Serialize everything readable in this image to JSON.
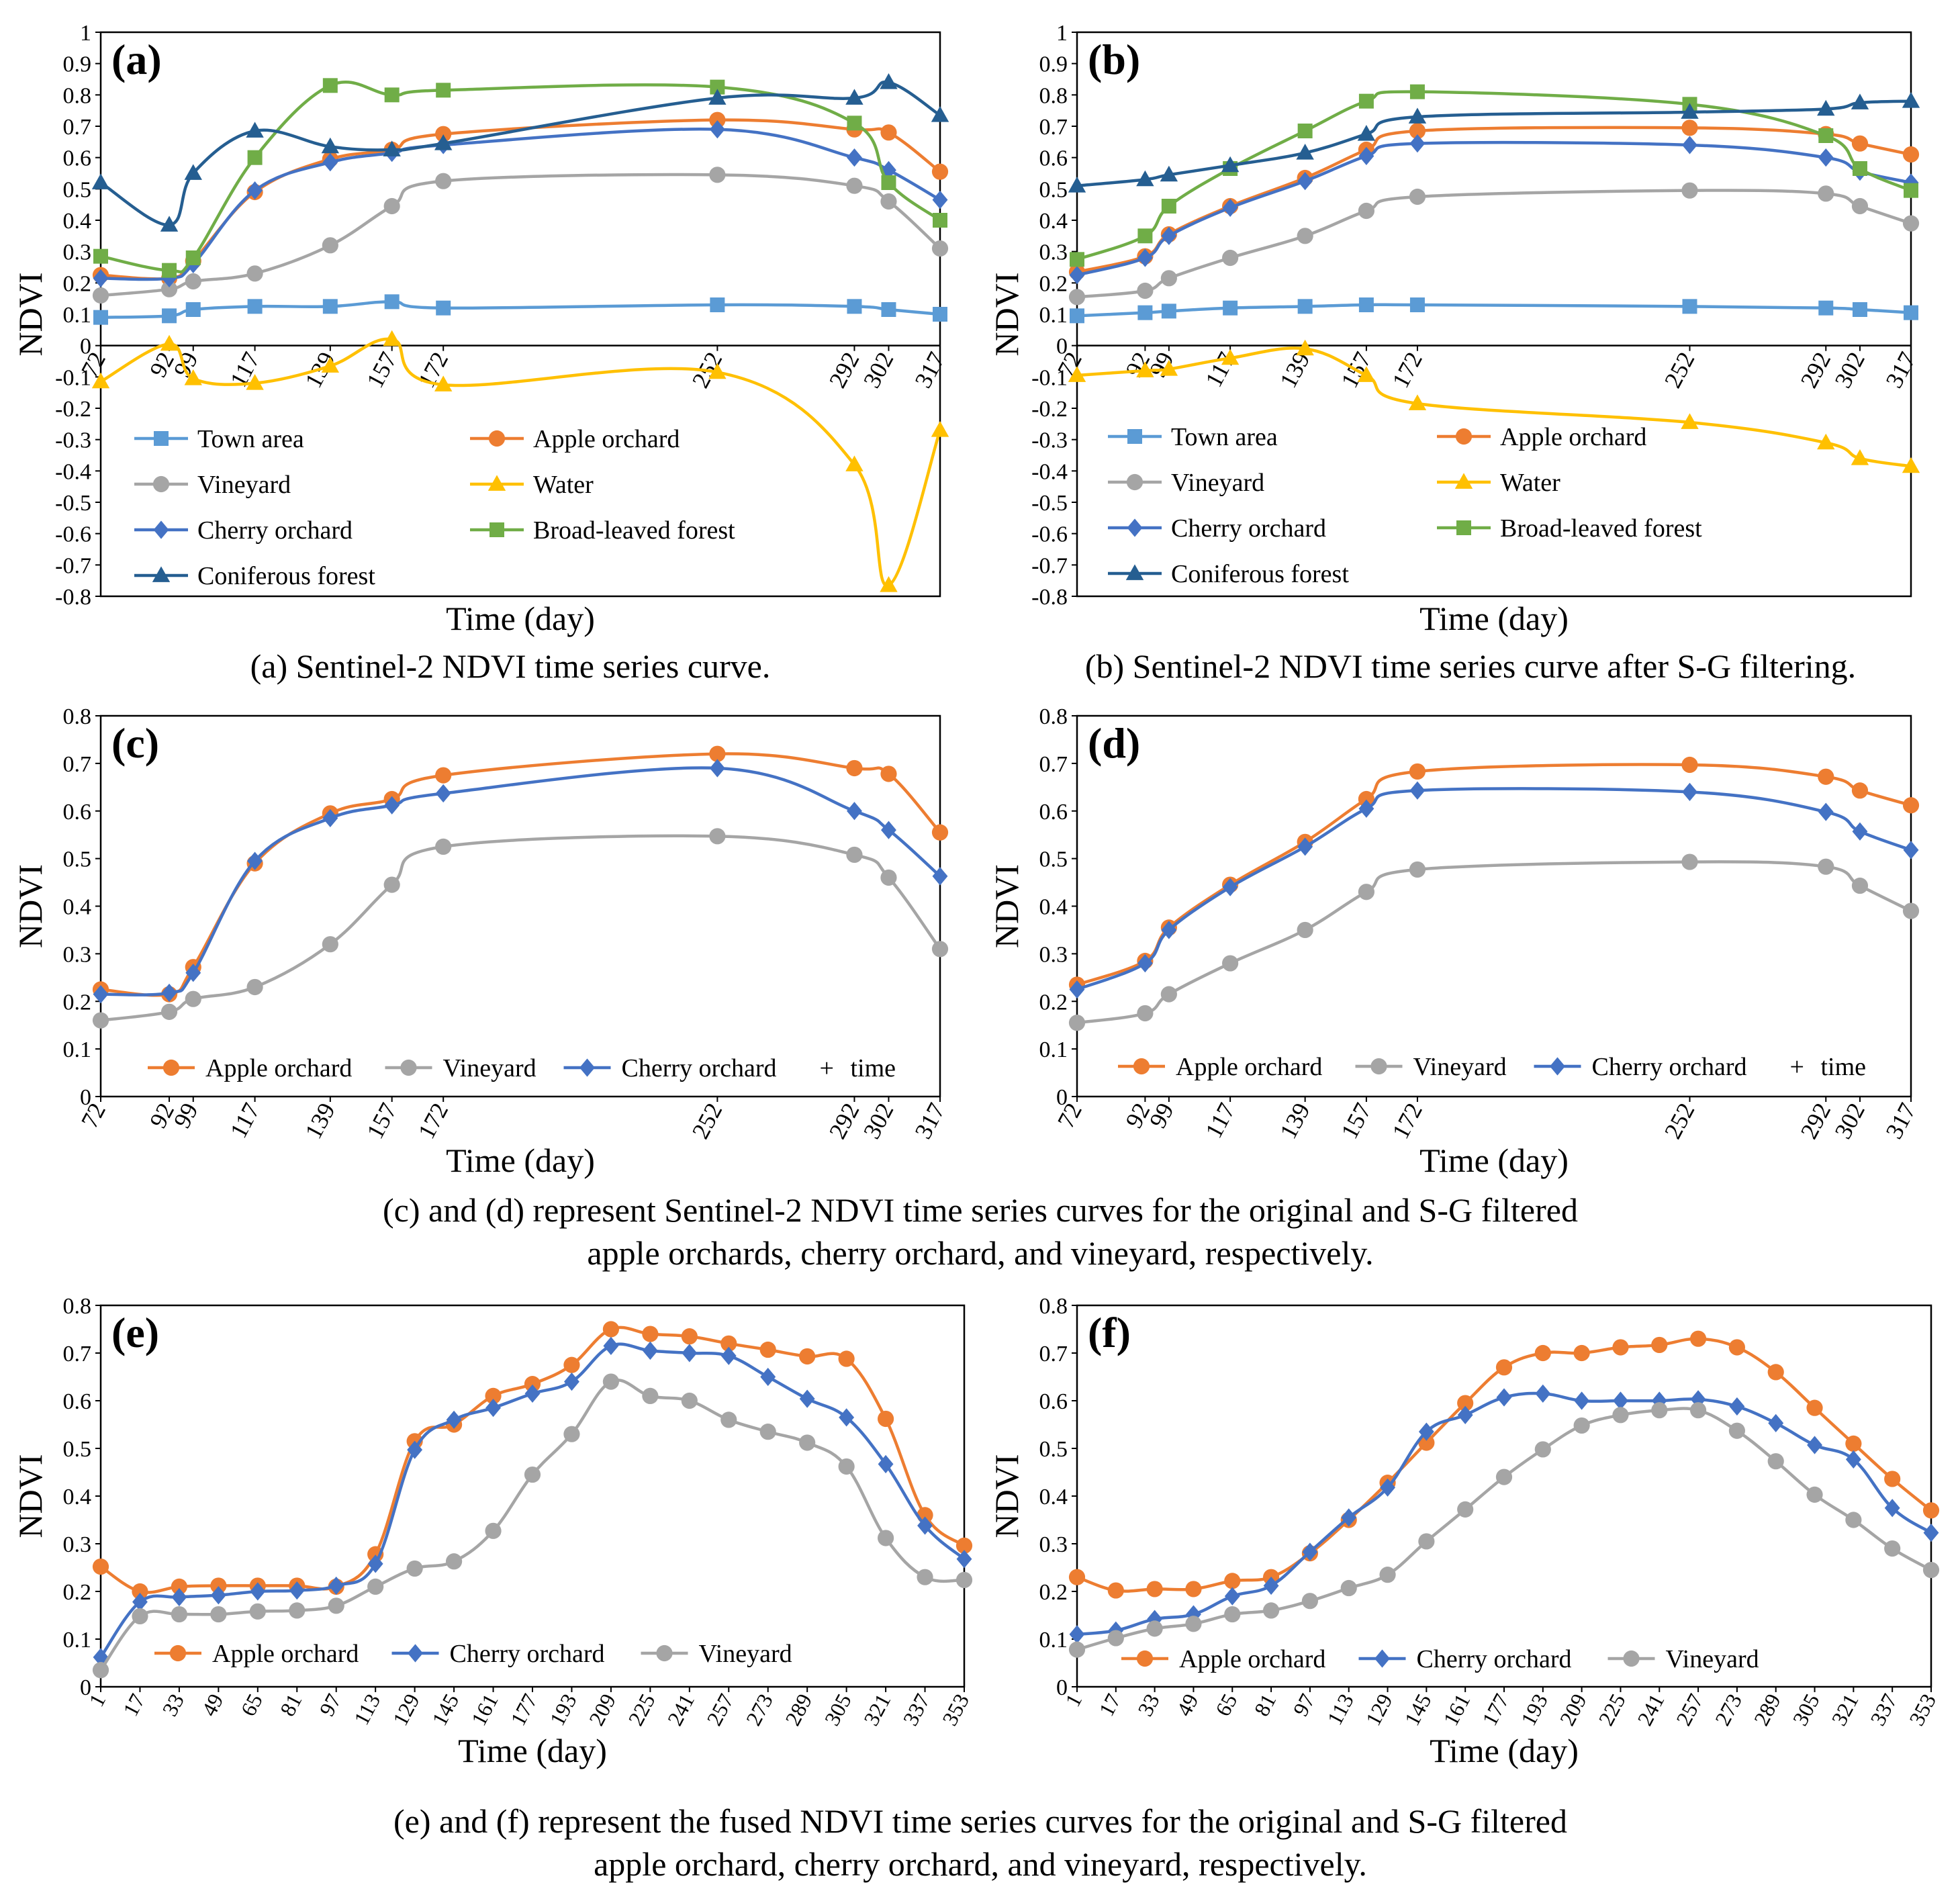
{
  "colors": {
    "town": "#5B9BD5",
    "apple": "#ED7D31",
    "vineyard": "#A5A5A5",
    "water": "#FFC000",
    "cherry": "#4472C4",
    "broadleaf": "#70AD47",
    "conifer": "#255E91",
    "axis": "#000000"
  },
  "chart_data": [
    {
      "id": "a",
      "type": "line",
      "panel_label": "(a)",
      "xlabel": "Time (day)",
      "ylabel": "NDVI",
      "ylim": [
        -0.8,
        1
      ],
      "yticks": [
        "-0.8",
        "-0.7",
        "-0.6",
        "-0.5",
        "-0.4",
        "-0.3",
        "-0.2",
        "-0.1",
        "0",
        "0.1",
        "0.2",
        "0.3",
        "0.4",
        "0.5",
        "0.6",
        "0.7",
        "0.8",
        "0.9",
        "1"
      ],
      "x": [
        72,
        92,
        99,
        117,
        139,
        157,
        172,
        252,
        292,
        302,
        317
      ],
      "xtick_labels": [
        "72",
        "92",
        "99",
        "117",
        "139",
        "157",
        "172",
        "252",
        "292",
        "302",
        "317"
      ],
      "legend_note": "",
      "series": [
        {
          "name": "Town area",
          "key": "town",
          "marker": "square",
          "values": [
            0.09,
            0.095,
            0.115,
            0.125,
            0.125,
            0.14,
            0.12,
            0.13,
            0.125,
            0.115,
            0.1
          ]
        },
        {
          "name": "Apple orchard",
          "key": "apple",
          "marker": "circle",
          "values": [
            0.225,
            0.215,
            0.27,
            0.49,
            0.595,
            0.625,
            0.675,
            0.72,
            0.69,
            0.68,
            0.555
          ]
        },
        {
          "name": "Vineyard",
          "key": "vineyard",
          "marker": "circle",
          "values": [
            0.16,
            0.18,
            0.205,
            0.23,
            0.32,
            0.445,
            0.525,
            0.545,
            0.51,
            0.46,
            0.31
          ]
        },
        {
          "name": "Water",
          "key": "water",
          "marker": "triangle",
          "values": [
            -0.115,
            0.005,
            -0.105,
            -0.12,
            -0.065,
            0.02,
            -0.125,
            -0.085,
            -0.38,
            -0.765,
            -0.27
          ]
        },
        {
          "name": "Cherry orchard",
          "key": "cherry",
          "marker": "diamond",
          "values": [
            0.215,
            0.215,
            0.26,
            0.495,
            0.585,
            0.615,
            0.64,
            0.69,
            0.6,
            0.56,
            0.465
          ]
        },
        {
          "name": "Broad-leaved forest",
          "key": "broadleaf",
          "marker": "square",
          "values": [
            0.285,
            0.24,
            0.28,
            0.6,
            0.83,
            0.8,
            0.815,
            0.825,
            0.71,
            0.52,
            0.4
          ]
        },
        {
          "name": "Coniferous forest",
          "key": "conifer",
          "marker": "triangle",
          "values": [
            0.52,
            0.385,
            0.55,
            0.685,
            0.635,
            0.625,
            0.645,
            0.79,
            0.79,
            0.84,
            0.735
          ]
        }
      ]
    },
    {
      "id": "b",
      "type": "line",
      "panel_label": "(b)",
      "xlabel": "Time (day)",
      "ylabel": "NDVI",
      "ylim": [
        -0.8,
        1
      ],
      "yticks": [
        "-0.8",
        "-0.7",
        "-0.6",
        "-0.5",
        "-0.4",
        "-0.3",
        "-0.2",
        "-0.1",
        "0",
        "0.1",
        "0.2",
        "0.3",
        "0.4",
        "0.5",
        "0.6",
        "0.7",
        "0.8",
        "0.9",
        "1"
      ],
      "x": [
        72,
        92,
        99,
        117,
        139,
        157,
        172,
        252,
        292,
        302,
        317
      ],
      "xtick_labels": [
        "72",
        "92",
        "99",
        "117",
        "139",
        "157",
        "172",
        "252",
        "292",
        "302",
        "317"
      ],
      "legend_note": "",
      "series": [
        {
          "name": "Town area",
          "key": "town",
          "marker": "square",
          "values": [
            0.095,
            0.105,
            0.11,
            0.12,
            0.125,
            0.13,
            0.13,
            0.125,
            0.12,
            0.115,
            0.105
          ]
        },
        {
          "name": "Apple orchard",
          "key": "apple",
          "marker": "circle",
          "values": [
            0.235,
            0.285,
            0.355,
            0.445,
            0.535,
            0.625,
            0.685,
            0.695,
            0.675,
            0.645,
            0.61
          ]
        },
        {
          "name": "Vineyard",
          "key": "vineyard",
          "marker": "circle",
          "values": [
            0.155,
            0.175,
            0.215,
            0.28,
            0.35,
            0.43,
            0.475,
            0.495,
            0.485,
            0.445,
            0.39
          ]
        },
        {
          "name": "Water",
          "key": "water",
          "marker": "triangle",
          "values": [
            -0.095,
            -0.08,
            -0.075,
            -0.04,
            -0.01,
            -0.095,
            -0.185,
            -0.245,
            -0.31,
            -0.36,
            -0.385
          ]
        },
        {
          "name": "Cherry orchard",
          "key": "cherry",
          "marker": "diamond",
          "values": [
            0.225,
            0.28,
            0.35,
            0.44,
            0.525,
            0.605,
            0.645,
            0.64,
            0.6,
            0.555,
            0.52
          ]
        },
        {
          "name": "Broad-leaved forest",
          "key": "broadleaf",
          "marker": "square",
          "values": [
            0.275,
            0.35,
            0.445,
            0.565,
            0.685,
            0.78,
            0.81,
            0.77,
            0.67,
            0.565,
            0.495
          ]
        },
        {
          "name": "Coniferous forest",
          "key": "conifer",
          "marker": "triangle",
          "values": [
            0.51,
            0.53,
            0.545,
            0.575,
            0.615,
            0.675,
            0.73,
            0.745,
            0.755,
            0.775,
            0.78
          ]
        }
      ]
    },
    {
      "id": "c",
      "type": "line",
      "panel_label": "(c)",
      "xlabel": "Time (day)",
      "ylabel": "NDVI",
      "ylim": [
        0,
        0.8
      ],
      "yticks": [
        "0",
        "0.1",
        "0.2",
        "0.3",
        "0.4",
        "0.5",
        "0.6",
        "0.7",
        "0.8"
      ],
      "x": [
        72,
        92,
        99,
        117,
        139,
        157,
        172,
        252,
        292,
        302,
        317
      ],
      "xtick_labels": [
        "72",
        "92",
        "99",
        "117",
        "139",
        "157",
        "172",
        "252",
        "292",
        "302",
        "317"
      ],
      "legend_note": "time",
      "series": [
        {
          "name": "Apple orchard",
          "key": "apple",
          "marker": "circle",
          "values": [
            0.225,
            0.215,
            0.272,
            0.49,
            0.595,
            0.625,
            0.675,
            0.72,
            0.69,
            0.678,
            0.555
          ]
        },
        {
          "name": "Vineyard",
          "key": "vineyard",
          "marker": "circle",
          "values": [
            0.16,
            0.178,
            0.205,
            0.23,
            0.32,
            0.445,
            0.525,
            0.547,
            0.508,
            0.46,
            0.31
          ]
        },
        {
          "name": "Cherry orchard",
          "key": "cherry",
          "marker": "diamond",
          "values": [
            0.215,
            0.218,
            0.26,
            0.495,
            0.585,
            0.612,
            0.637,
            0.69,
            0.6,
            0.56,
            0.463
          ]
        }
      ]
    },
    {
      "id": "d",
      "type": "line",
      "panel_label": "(d)",
      "xlabel": "Time (day)",
      "ylabel": "NDVI",
      "ylim": [
        0,
        0.8
      ],
      "yticks": [
        "0",
        "0.1",
        "0.2",
        "0.3",
        "0.4",
        "0.5",
        "0.6",
        "0.7",
        "0.8"
      ],
      "x": [
        72,
        92,
        99,
        117,
        139,
        157,
        172,
        252,
        292,
        302,
        317
      ],
      "xtick_labels": [
        "72",
        "92",
        "99",
        "117",
        "139",
        "157",
        "172",
        "252",
        "292",
        "302",
        "317"
      ],
      "legend_note": "time",
      "series": [
        {
          "name": "Apple orchard",
          "key": "apple",
          "marker": "circle",
          "values": [
            0.235,
            0.285,
            0.355,
            0.445,
            0.535,
            0.625,
            0.683,
            0.697,
            0.672,
            0.643,
            0.612
          ]
        },
        {
          "name": "Vineyard",
          "key": "vineyard",
          "marker": "circle",
          "values": [
            0.155,
            0.175,
            0.215,
            0.28,
            0.35,
            0.43,
            0.477,
            0.493,
            0.483,
            0.443,
            0.39
          ]
        },
        {
          "name": "Cherry orchard",
          "key": "cherry",
          "marker": "diamond",
          "values": [
            0.225,
            0.28,
            0.35,
            0.44,
            0.525,
            0.605,
            0.643,
            0.64,
            0.598,
            0.557,
            0.518
          ]
        }
      ]
    },
    {
      "id": "e",
      "type": "line",
      "panel_label": "(e)",
      "xlabel": "Time (day)",
      "ylabel": "NDVI",
      "ylim": [
        0,
        0.8
      ],
      "yticks": [
        "0",
        "0.1",
        "0.2",
        "0.3",
        "0.4",
        "0.5",
        "0.6",
        "0.7",
        "0.8"
      ],
      "x": [
        1,
        17,
        33,
        49,
        65,
        81,
        97,
        113,
        129,
        145,
        161,
        177,
        193,
        209,
        225,
        241,
        257,
        273,
        289,
        305,
        321,
        337,
        353
      ],
      "xtick_labels": [
        "1",
        "17",
        "33",
        "49",
        "65",
        "81",
        "97",
        "113",
        "129",
        "145",
        "161",
        "177",
        "193",
        "209",
        "225",
        "241",
        "257",
        "273",
        "289",
        "305",
        "321",
        "337",
        "353"
      ],
      "legend_note": "",
      "series": [
        {
          "name": "Apple orchard",
          "key": "apple",
          "marker": "circle",
          "values": [
            0.252,
            0.2,
            0.21,
            0.212,
            0.212,
            0.212,
            0.21,
            0.278,
            0.515,
            0.55,
            0.61,
            0.635,
            0.675,
            0.75,
            0.74,
            0.735,
            0.72,
            0.707,
            0.693,
            0.688,
            0.562,
            0.36,
            0.296
          ]
        },
        {
          "name": "Cherry orchard",
          "key": "cherry",
          "marker": "diamond",
          "values": [
            0.062,
            0.178,
            0.188,
            0.192,
            0.2,
            0.202,
            0.212,
            0.258,
            0.497,
            0.56,
            0.585,
            0.615,
            0.64,
            0.715,
            0.705,
            0.7,
            0.694,
            0.65,
            0.604,
            0.565,
            0.467,
            0.338,
            0.268
          ]
        },
        {
          "name": "Vineyard",
          "key": "vineyard",
          "marker": "circle",
          "values": [
            0.035,
            0.148,
            0.152,
            0.152,
            0.158,
            0.16,
            0.17,
            0.21,
            0.248,
            0.263,
            0.327,
            0.445,
            0.53,
            0.64,
            0.61,
            0.6,
            0.56,
            0.535,
            0.512,
            0.462,
            0.312,
            0.23,
            0.224
          ]
        }
      ]
    },
    {
      "id": "f",
      "type": "line",
      "panel_label": "(f)",
      "xlabel": "Time (day)",
      "ylabel": "NDVI",
      "ylim": [
        0,
        0.8
      ],
      "yticks": [
        "0",
        "0.1",
        "0.2",
        "0.3",
        "0.4",
        "0.5",
        "0.6",
        "0.7",
        "0.8"
      ],
      "x": [
        1,
        17,
        33,
        49,
        65,
        81,
        97,
        113,
        129,
        145,
        161,
        177,
        193,
        209,
        225,
        241,
        257,
        273,
        289,
        305,
        321,
        337,
        353
      ],
      "xtick_labels": [
        "1",
        "17",
        "33",
        "49",
        "65",
        "81",
        "97",
        "113",
        "129",
        "145",
        "161",
        "177",
        "193",
        "209",
        "225",
        "241",
        "257",
        "273",
        "289",
        "305",
        "321",
        "337",
        "353"
      ],
      "legend_note": "",
      "series": [
        {
          "name": "Apple orchard",
          "key": "apple",
          "marker": "circle",
          "values": [
            0.23,
            0.202,
            0.205,
            0.205,
            0.222,
            0.23,
            0.28,
            0.35,
            0.428,
            0.512,
            0.595,
            0.67,
            0.7,
            0.7,
            0.712,
            0.717,
            0.73,
            0.712,
            0.66,
            0.585,
            0.51,
            0.436,
            0.37
          ]
        },
        {
          "name": "Cherry orchard",
          "key": "cherry",
          "marker": "diamond",
          "values": [
            0.11,
            0.118,
            0.142,
            0.152,
            0.19,
            0.212,
            0.283,
            0.355,
            0.418,
            0.535,
            0.57,
            0.607,
            0.615,
            0.6,
            0.6,
            0.6,
            0.603,
            0.588,
            0.553,
            0.507,
            0.477,
            0.375,
            0.323
          ]
        },
        {
          "name": "Vineyard",
          "key": "vineyard",
          "marker": "circle",
          "values": [
            0.078,
            0.102,
            0.122,
            0.132,
            0.152,
            0.16,
            0.18,
            0.207,
            0.235,
            0.305,
            0.372,
            0.44,
            0.498,
            0.548,
            0.57,
            0.58,
            0.58,
            0.537,
            0.473,
            0.403,
            0.35,
            0.29,
            0.245
          ]
        }
      ]
    }
  ],
  "captions": {
    "a": "(a) Sentinel-2 NDVI time series curve.",
    "b": "(b) Sentinel-2 NDVI time series curve after S-G filtering.",
    "cd_line1": "(c) and (d) represent Sentinel-2 NDVI time series curves for the original and S-G filtered",
    "cd_line2": "apple orchards, cherry orchard, and vineyard, respectively.",
    "ef_line1": "(e) and (f) represent the fused NDVI time series curves for the original and S-G filtered",
    "ef_line2": "apple orchard, cherry orchard, and vineyard, respectively."
  }
}
